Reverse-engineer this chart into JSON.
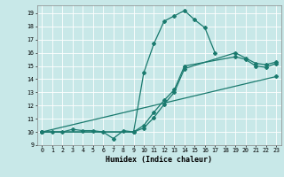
{
  "xlabel": "Humidex (Indice chaleur)",
  "bg_color": "#c8e8e8",
  "line_color": "#1a7a6e",
  "xlim": [
    -0.5,
    23.5
  ],
  "ylim": [
    9.0,
    19.6
  ],
  "xticks": [
    0,
    1,
    2,
    3,
    4,
    5,
    6,
    7,
    8,
    9,
    10,
    11,
    12,
    13,
    14,
    15,
    16,
    17,
    18,
    19,
    20,
    21,
    22,
    23
  ],
  "yticks": [
    9,
    10,
    11,
    12,
    13,
    14,
    15,
    16,
    17,
    18,
    19
  ],
  "series1": {
    "x": [
      0,
      1,
      2,
      3,
      4,
      5,
      6,
      7,
      8,
      9,
      10,
      11,
      12,
      13,
      14,
      15,
      16,
      17
    ],
    "y": [
      10,
      10,
      10,
      10.2,
      10.1,
      10.1,
      10,
      9.5,
      10.1,
      10,
      14.5,
      16.7,
      18.4,
      18.8,
      19.2,
      18.5,
      17.9,
      16.0
    ]
  },
  "series2": {
    "x": [
      0,
      9,
      10,
      11,
      12,
      13,
      14,
      19,
      20,
      21,
      22,
      23
    ],
    "y": [
      10,
      10,
      10.5,
      11.5,
      12.4,
      13.2,
      15.0,
      15.7,
      15.5,
      15.0,
      14.9,
      15.2
    ]
  },
  "series3": {
    "x": [
      0,
      9,
      10,
      11,
      12,
      13,
      14,
      19,
      20,
      21,
      22,
      23
    ],
    "y": [
      10,
      10,
      10.3,
      11.1,
      12.1,
      13.0,
      14.8,
      16.0,
      15.6,
      15.2,
      15.1,
      15.3
    ]
  },
  "series4": {
    "x": [
      0,
      23
    ],
    "y": [
      10,
      14.2
    ]
  }
}
